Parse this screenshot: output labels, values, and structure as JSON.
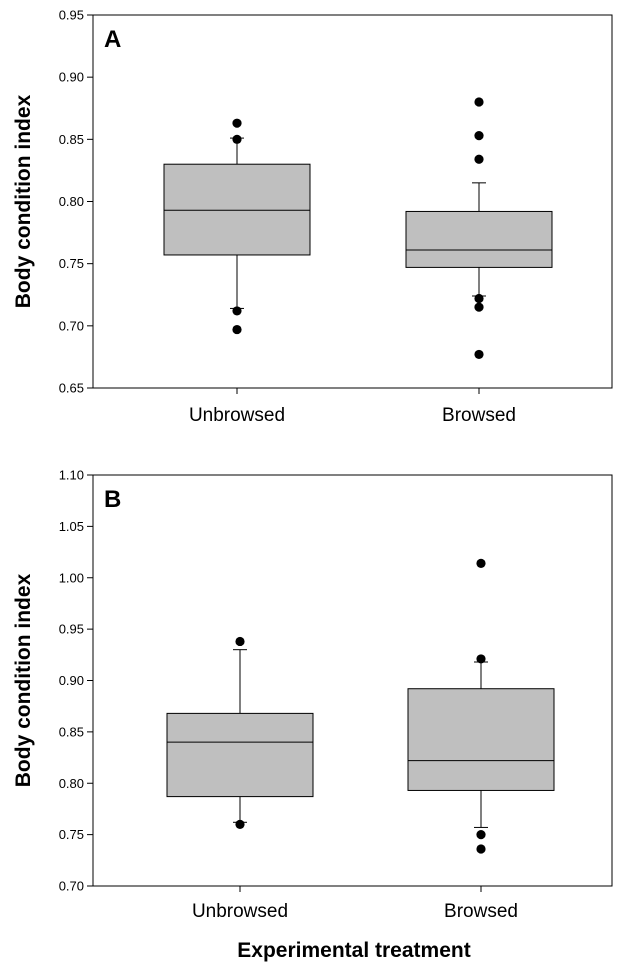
{
  "chart_data": [
    {
      "type": "box",
      "panel_label": "A",
      "ylabel": "Body condition index",
      "xlabel": "",
      "ylim": [
        0.65,
        0.95
      ],
      "yticks": [
        "0.65",
        "0.70",
        "0.75",
        "0.80",
        "0.85",
        "0.90",
        "0.95"
      ],
      "tick_values": [
        0.65,
        0.7,
        0.75,
        0.8,
        0.85,
        0.9,
        0.95
      ],
      "box_color": "#bfbfbf",
      "categories": [
        "Unbrowsed",
        "Browsed"
      ],
      "boxes": [
        {
          "whisker_low": 0.714,
          "q1": 0.757,
          "median": 0.793,
          "q3": 0.83,
          "whisker_high": 0.851,
          "outliers": [
            0.863,
            0.85,
            0.712,
            0.697
          ]
        },
        {
          "whisker_low": 0.724,
          "q1": 0.747,
          "median": 0.761,
          "q3": 0.792,
          "whisker_high": 0.815,
          "outliers": [
            0.88,
            0.853,
            0.834,
            0.722,
            0.715,
            0.677
          ]
        }
      ]
    },
    {
      "type": "box",
      "panel_label": "B",
      "ylabel": "Body condition index",
      "xlabel": "Experimental treatment",
      "ylim": [
        0.7,
        1.1
      ],
      "yticks": [
        "0.70",
        "0.75",
        "0.80",
        "0.85",
        "0.90",
        "0.95",
        "1.00",
        "1.05",
        "1.10"
      ],
      "tick_values": [
        0.7,
        0.75,
        0.8,
        0.85,
        0.9,
        0.95,
        1.0,
        1.05,
        1.1
      ],
      "box_color": "#bfbfbf",
      "categories": [
        "Unbrowsed",
        "Browsed"
      ],
      "boxes": [
        {
          "whisker_low": 0.762,
          "q1": 0.787,
          "median": 0.84,
          "q3": 0.868,
          "whisker_high": 0.93,
          "outliers": [
            0.938,
            0.76
          ]
        },
        {
          "whisker_low": 0.757,
          "q1": 0.793,
          "median": 0.822,
          "q3": 0.892,
          "whisker_high": 0.918,
          "outliers": [
            1.014,
            0.921,
            0.75,
            0.736
          ]
        }
      ]
    }
  ]
}
